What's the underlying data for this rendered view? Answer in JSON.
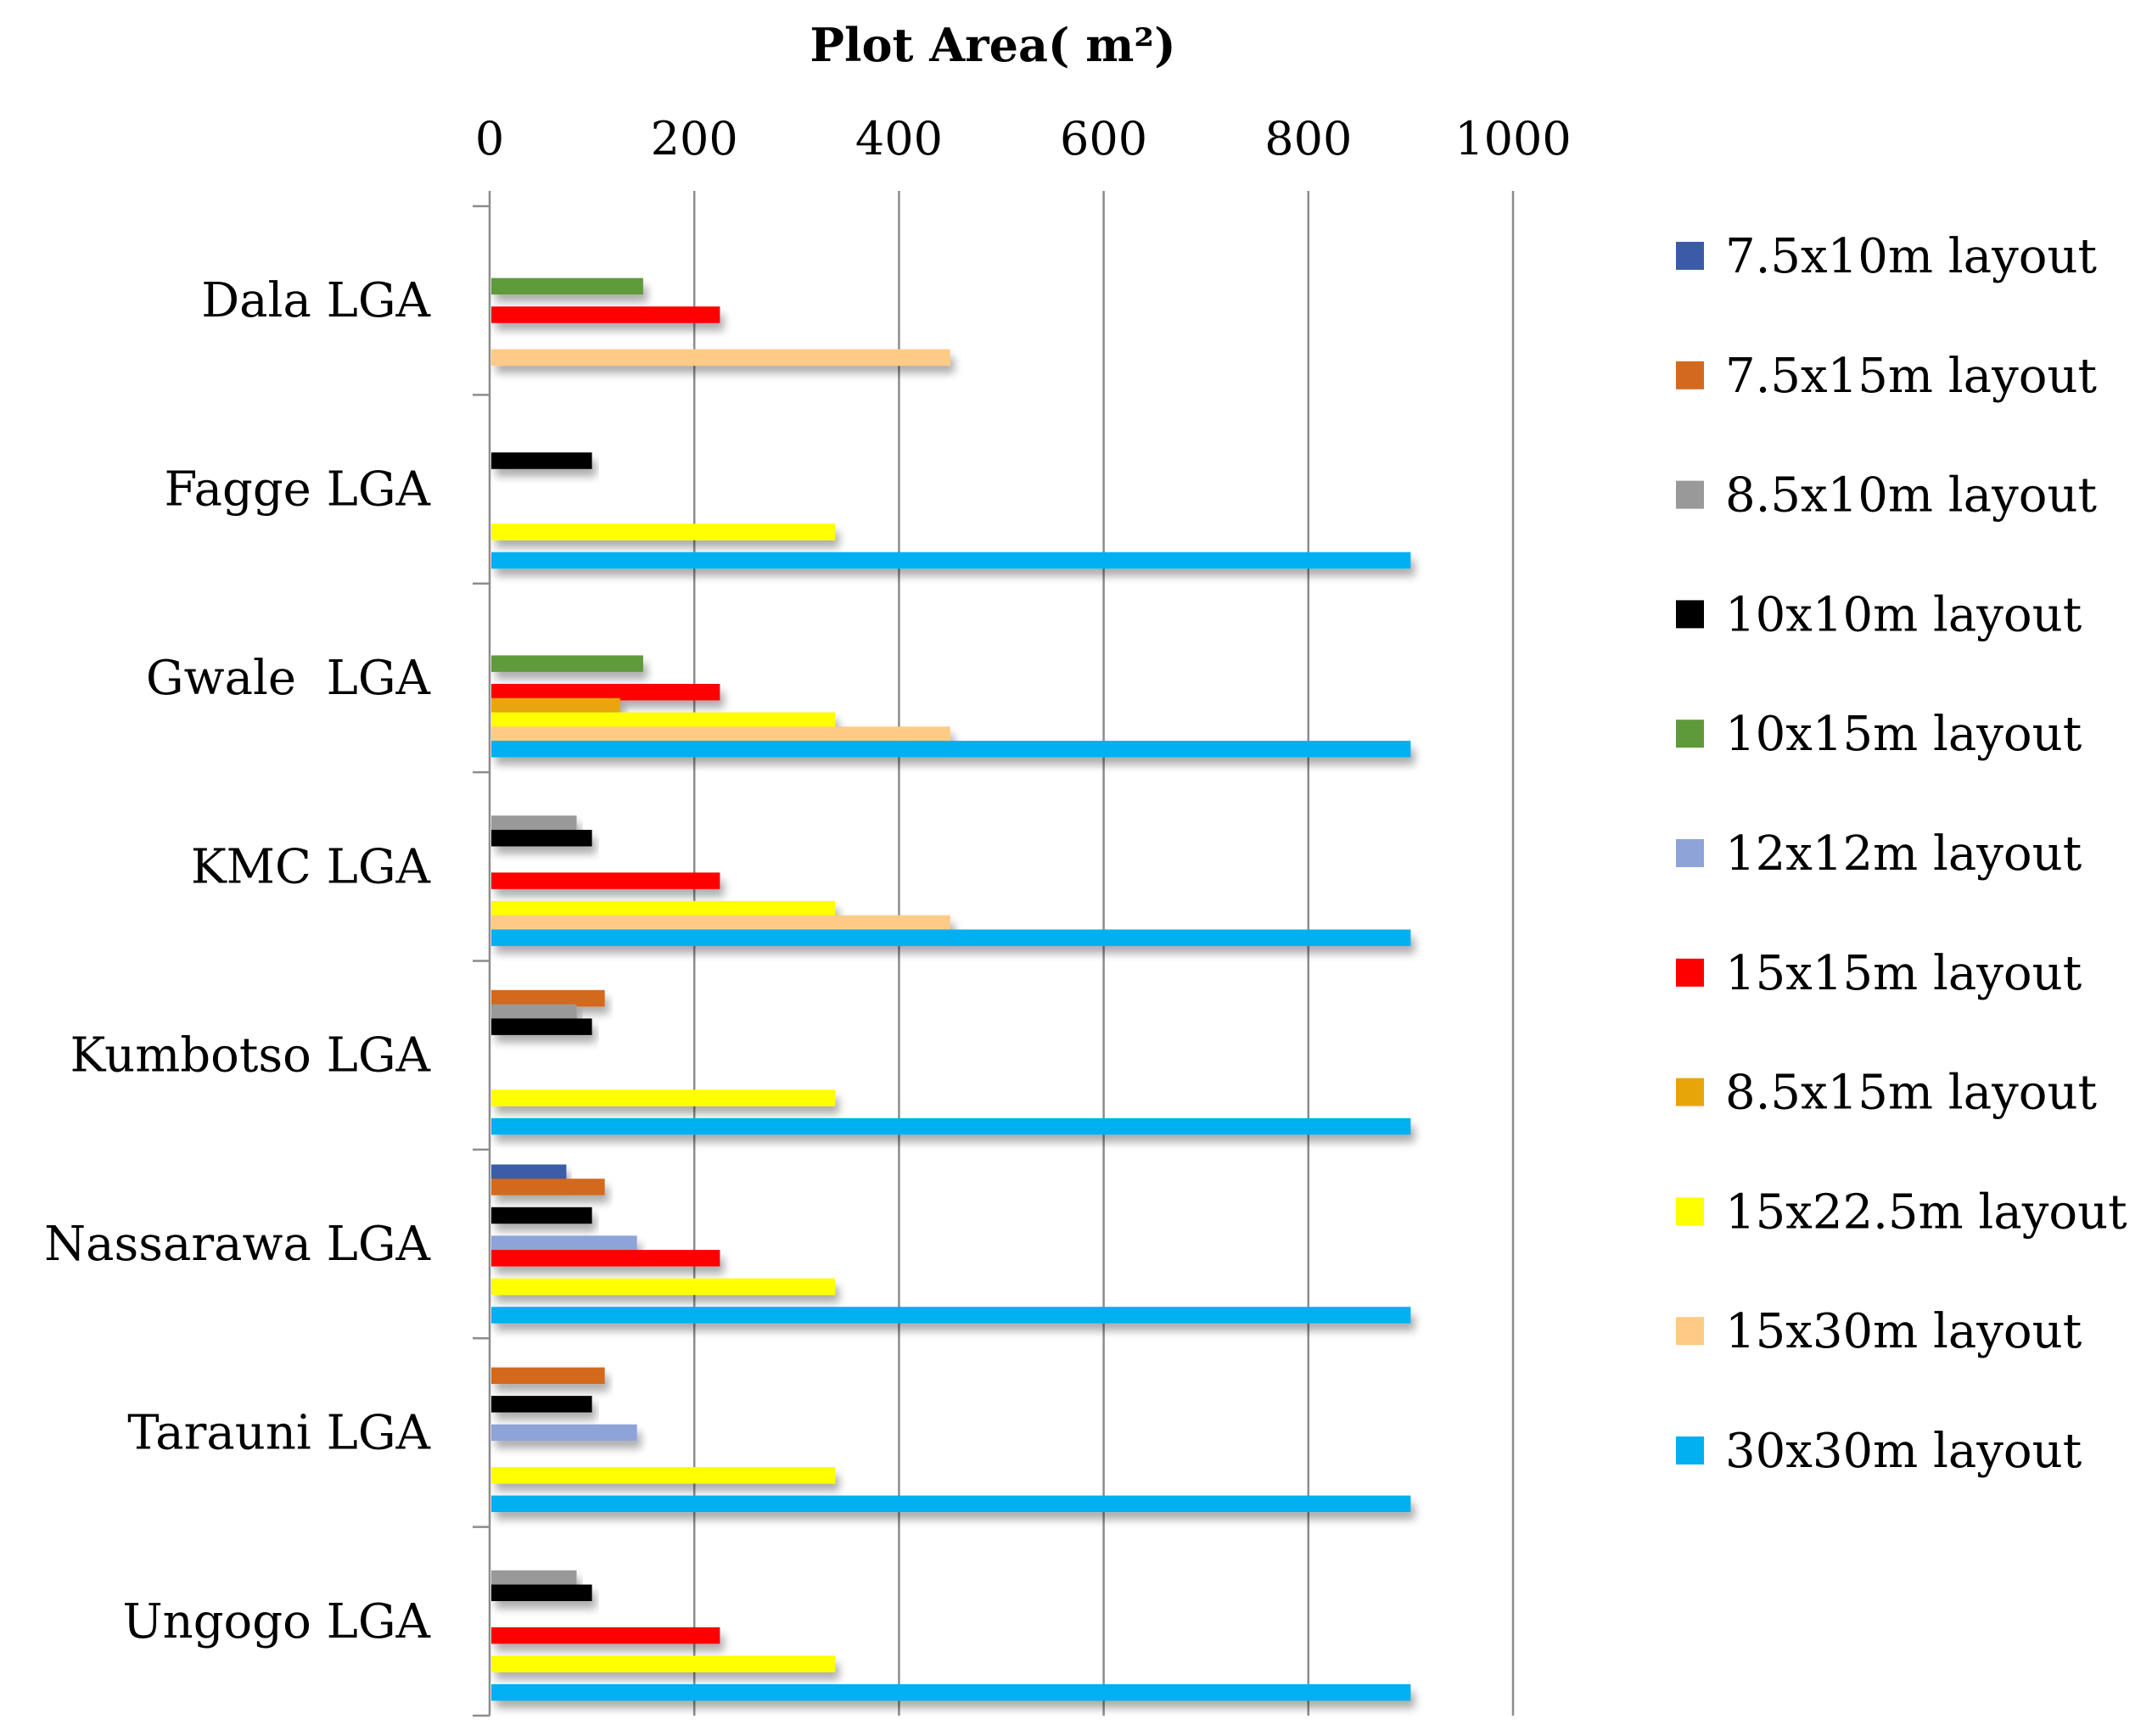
{
  "chart_data": {
    "type": "bar",
    "orientation": "horizontal",
    "title": "Plot Area( m²)",
    "xlabel": "Plot Area( m²)",
    "ylabel": "",
    "xlim": [
      0,
      1000
    ],
    "xticks": [
      "0",
      "200",
      "400",
      "600",
      "800",
      "1000"
    ],
    "grid": true,
    "legend_position": "right",
    "categories": [
      "Dala LGA",
      "Fagge LGA",
      "Gwale  LGA",
      "KMC LGA",
      "Kumbotso LGA",
      "Nassarawa LGA",
      "Tarauni LGA",
      "Ungogo LGA"
    ],
    "series": [
      {
        "name": "7.5x10m layout",
        "color": "#3a5ca8",
        "values": [
          null,
          null,
          null,
          null,
          null,
          75,
          null,
          null
        ]
      },
      {
        "name": "7.5x15m layout",
        "color": "#d2691e",
        "values": [
          null,
          null,
          null,
          null,
          112.5,
          112.5,
          112.5,
          null
        ]
      },
      {
        "name": "8.5x10m layout",
        "color": "#999999",
        "values": [
          null,
          null,
          null,
          85,
          85,
          null,
          null,
          85
        ]
      },
      {
        "name": "10x10m layout",
        "color": "#000000",
        "values": [
          null,
          100,
          null,
          100,
          100,
          100,
          100,
          100
        ]
      },
      {
        "name": "10x15m layout",
        "color": "#5e9a3a",
        "values": [
          150,
          null,
          150,
          null,
          null,
          null,
          null,
          null
        ]
      },
      {
        "name": "12x12m layout",
        "color": "#8ea3d8",
        "values": [
          null,
          null,
          null,
          null,
          null,
          144,
          144,
          null
        ]
      },
      {
        "name": "15x15m layout",
        "color": "#ff0000",
        "values": [
          225,
          null,
          225,
          225,
          null,
          225,
          null,
          225
        ]
      },
      {
        "name": "8.5x15m layout",
        "color": "#e8a50a",
        "values": [
          null,
          null,
          127.5,
          null,
          null,
          null,
          null,
          null
        ]
      },
      {
        "name": "15x22.5m layout",
        "color": "#ffff00",
        "values": [
          null,
          337.5,
          337.5,
          337.5,
          337.5,
          337.5,
          337.5,
          337.5
        ]
      },
      {
        "name": "15x30m layout",
        "color": "#fdcb85",
        "values": [
          450,
          null,
          450,
          450,
          null,
          null,
          null,
          null
        ]
      },
      {
        "name": "30x30m layout",
        "color": "#00b0f0",
        "values": [
          null,
          900,
          900,
          900,
          900,
          900,
          900,
          900
        ]
      }
    ]
  }
}
